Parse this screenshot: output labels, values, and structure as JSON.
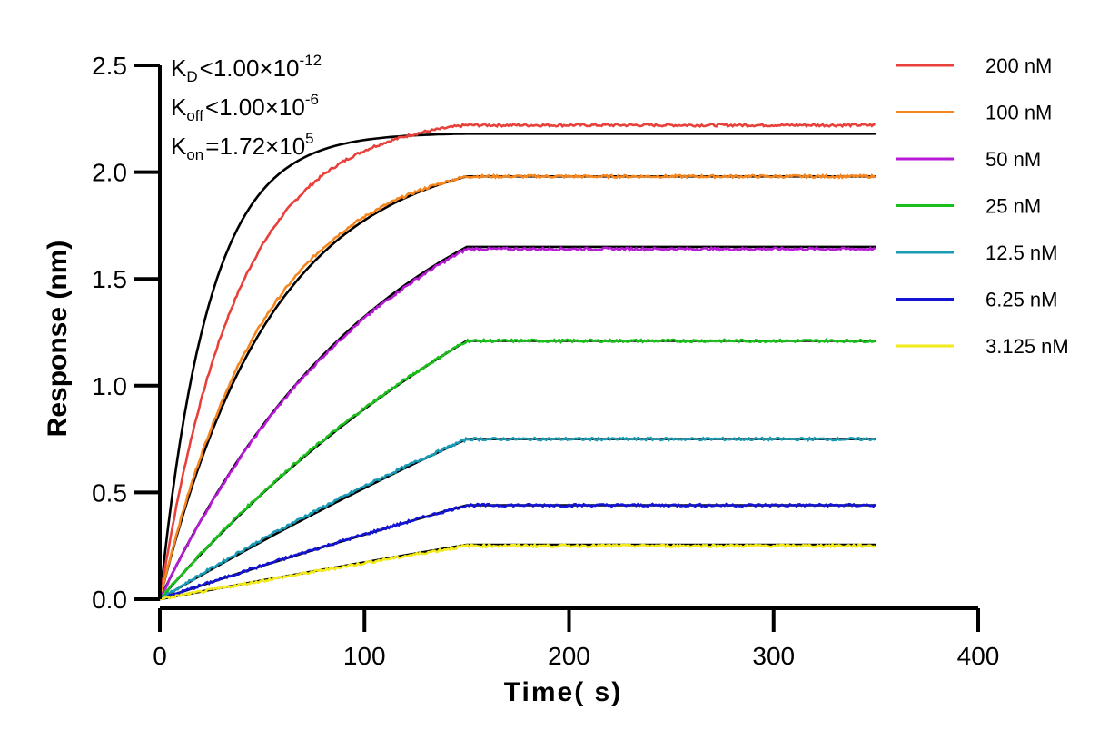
{
  "chart_data": {
    "type": "line",
    "xlabel": "Time( s)",
    "ylabel": "Response (nm)",
    "xlim": [
      0,
      400
    ],
    "ylim": [
      0,
      2.5
    ],
    "x_ticks": [
      "0",
      "100",
      "200",
      "300",
      "400"
    ],
    "y_ticks": [
      "0.0",
      "0.5",
      "1.0",
      "1.5",
      "2.0",
      "2.5"
    ],
    "grid": false,
    "legend_position": "right",
    "association_end_s": 150,
    "end_time_s": 350,
    "annotations": {
      "kd": {
        "symbol": "K",
        "sub": "D",
        "relation": "<",
        "base": "1.00×10",
        "exp": "-12"
      },
      "koff": {
        "symbol": "K",
        "sub": "off",
        "relation": "<",
        "base": "1.00×10",
        "exp": "-6"
      },
      "kon": {
        "symbol": "K",
        "sub": "on",
        "relation": "=",
        "base": "1.72×10",
        "exp": "5"
      }
    },
    "series": [
      {
        "name": "200 nM",
        "color": "#e8403a",
        "plateau": 2.22,
        "fit_plateau": 2.18,
        "tau": 38,
        "fit_tau": 24
      },
      {
        "name": "100 nM",
        "color": "#f5861f",
        "plateau": 1.98,
        "fit_plateau": 1.98,
        "tau": 52,
        "fit_tau": 55
      },
      {
        "name": "50 nM",
        "color": "#b81bd6",
        "plateau": 1.64,
        "fit_plateau": 1.65,
        "tau": 110,
        "fit_tau": 110
      },
      {
        "name": "25 nM",
        "color": "#1bbf1b",
        "plateau": 1.21,
        "fit_plateau": 1.21,
        "tau": 220,
        "fit_tau": 230
      },
      {
        "name": "12.5 nM",
        "color": "#1a9bb5",
        "plateau": 0.75,
        "fit_plateau": 0.75,
        "tau": 420,
        "fit_tau": 600
      },
      {
        "name": "6.25 nM",
        "color": "#1414d4",
        "plateau": 0.44,
        "fit_plateau": 0.44,
        "tau": 700,
        "fit_tau": 800
      },
      {
        "name": "3.125 nM",
        "color": "#f2ea1a",
        "plateau": 0.25,
        "fit_plateau": 0.255,
        "tau": 1500,
        "fit_tau": 1500
      }
    ],
    "fit_color": "#000000"
  }
}
